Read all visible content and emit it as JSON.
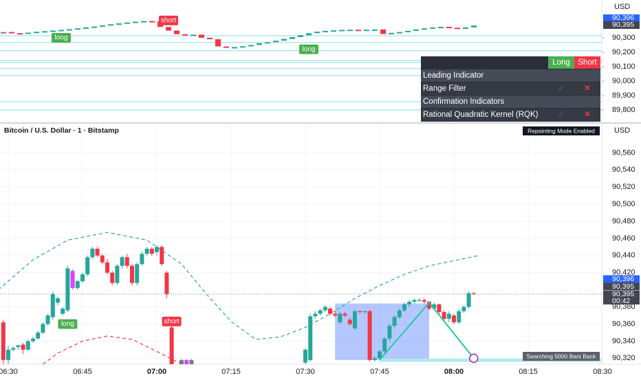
{
  "top_pane": {
    "ylim": [
      89714,
      90562
    ],
    "axis_unit": "USD",
    "yticks": [
      {
        "value": 90300,
        "label": "90,300"
      },
      {
        "value": 90200,
        "label": "90,200"
      },
      {
        "value": 90100,
        "label": "90,100"
      },
      {
        "value": 90000,
        "label": "90,000"
      },
      {
        "value": 89900,
        "label": "89,900"
      },
      {
        "value": 89800,
        "label": "89,800"
      }
    ],
    "price_tags": [
      {
        "value": 90396,
        "label": "90,396",
        "color": "#2962ff"
      },
      {
        "value": 90395,
        "label": "90,395",
        "color": "#434651"
      }
    ],
    "levels": [
      90314,
      90267,
      90210,
      90143,
      90129,
      90086,
      90038,
      89857,
      89800
    ],
    "closes": [
      90340,
      90332,
      90328,
      90336,
      90342,
      90346,
      90350,
      90355,
      90360,
      90366,
      90372,
      90378,
      90386,
      90394,
      90400,
      90406,
      90412,
      90416,
      90414,
      90375,
      90350,
      90325,
      90318,
      90322,
      90300,
      90290,
      90240,
      90232,
      90236,
      90242,
      90250,
      90262,
      90270,
      90280,
      90292,
      90305,
      90318,
      90332,
      90342,
      90348,
      90352,
      90355,
      90356,
      90354,
      90356,
      90358,
      90326,
      90334,
      90340,
      90348,
      90358,
      90366,
      90372,
      90376,
      90370,
      90362,
      90372,
      90385
    ],
    "signals": [
      {
        "text": "long",
        "index": 7,
        "value": 90300,
        "color": "#4caf50"
      },
      {
        "text": "short",
        "index": 20,
        "value": 90420,
        "color": "#f23645"
      },
      {
        "text": "long",
        "index": 37,
        "value": 90220,
        "color": "#4caf50"
      }
    ]
  },
  "table": {
    "header": [
      "Long",
      "Short"
    ],
    "rows": [
      {
        "label": "Leading Indicator",
        "section": true
      },
      {
        "label": "Range Filter",
        "long": "✓",
        "short": "✕"
      },
      {
        "label": "Confirmation Indicators",
        "section": true
      },
      {
        "label": "Rational Quadratic Kernel (RQK)",
        "long": "✓",
        "short": "✕"
      }
    ]
  },
  "bottom_pane": {
    "symbol": "Bitcoin / U.S. Dollar · 1 · Bitstamp",
    "badge": "Repainting Mode Enabled",
    "status": "Searching 5000 Bars Back",
    "axis_unit": "USD",
    "ylim": [
      90313,
      90594
    ],
    "yticks": [
      {
        "value": 90560,
        "label": "90,560"
      },
      {
        "value": 90540,
        "label": "90,540"
      },
      {
        "value": 90520,
        "label": "90,520"
      },
      {
        "value": 90500,
        "label": "90,500"
      },
      {
        "value": 90480,
        "label": "90,480"
      },
      {
        "value": 90460,
        "label": "90,460"
      },
      {
        "value": 90440,
        "label": "90,440"
      },
      {
        "value": 90420,
        "label": "90,420"
      },
      {
        "value": 90380,
        "label": "90,380"
      },
      {
        "value": 90360,
        "label": "90,360"
      },
      {
        "value": 90340,
        "label": "90,340"
      },
      {
        "value": 90320,
        "label": "90,320"
      }
    ],
    "xticks": [
      "06:30",
      "06:45",
      "07:00",
      "07:15",
      "07:30",
      "07:45",
      "08:00",
      "08:15",
      "08:30"
    ],
    "price_tags": [
      {
        "value": 90396,
        "label": "90,396",
        "color": "#2962ff"
      },
      {
        "value": 90395,
        "label": "90,395",
        "color": "#434651"
      }
    ],
    "last_price": {
      "value": 90395,
      "label": "90,395",
      "countdown": "00:42"
    },
    "candles": [
      {
        "t": "06:29",
        "o": 90362,
        "h": 90365,
        "l": 90310,
        "c": 90318
      },
      {
        "t": "06:30",
        "o": 90318,
        "h": 90335,
        "l": 90312,
        "c": 90330
      },
      {
        "t": "06:31",
        "o": 90330,
        "h": 90334,
        "l": 90328,
        "c": 90332
      },
      {
        "t": "06:32",
        "o": 90333,
        "h": 90336,
        "l": 90330,
        "c": 90335
      },
      {
        "t": "06:33",
        "o": 90336,
        "h": 90338,
        "l": 90325,
        "c": 90330
      },
      {
        "t": "06:34",
        "o": 90330,
        "h": 90342,
        "l": 90329,
        "c": 90340
      },
      {
        "t": "06:35",
        "o": 90340,
        "h": 90345,
        "l": 90338,
        "c": 90343
      },
      {
        "t": "06:36",
        "o": 90343,
        "h": 90352,
        "l": 90342,
        "c": 90350
      },
      {
        "t": "06:37",
        "o": 90350,
        "h": 90362,
        "l": 90348,
        "c": 90360
      },
      {
        "t": "06:38",
        "o": 90360,
        "h": 90372,
        "l": 90358,
        "c": 90370
      },
      {
        "t": "06:39",
        "o": 90368,
        "h": 90398,
        "l": 90365,
        "c": 90395
      },
      {
        "t": "06:40",
        "o": 90385,
        "h": 90392,
        "l": 90382,
        "c": 90390
      },
      {
        "t": "06:41",
        "o": 90372,
        "h": 90380,
        "l": 90370,
        "c": 90378
      },
      {
        "t": "06:42",
        "o": 90376,
        "h": 90428,
        "l": 90374,
        "c": 90425
      },
      {
        "t": "06:43",
        "o": 90422,
        "h": 90424,
        "l": 90400,
        "c": 90402,
        "color": "#e040fb"
      },
      {
        "t": "06:44",
        "o": 90402,
        "h": 90412,
        "l": 90400,
        "c": 90410
      },
      {
        "t": "06:45",
        "o": 90410,
        "h": 90420,
        "l": 90408,
        "c": 90418
      },
      {
        "t": "06:46",
        "o": 90418,
        "h": 90440,
        "l": 90416,
        "c": 90438
      },
      {
        "t": "06:47",
        "o": 90438,
        "h": 90450,
        "l": 90436,
        "c": 90448
      },
      {
        "t": "06:48",
        "o": 90448,
        "h": 90450,
        "l": 90438,
        "c": 90440
      },
      {
        "t": "06:49",
        "o": 90440,
        "h": 90442,
        "l": 90430,
        "c": 90432
      },
      {
        "t": "06:50",
        "o": 90432,
        "h": 90436,
        "l": 90418,
        "c": 90420
      },
      {
        "t": "06:51",
        "o": 90420,
        "h": 90422,
        "l": 90405,
        "c": 90408
      },
      {
        "t": "06:52",
        "o": 90408,
        "h": 90430,
        "l": 90406,
        "c": 90428
      },
      {
        "t": "06:53",
        "o": 90428,
        "h": 90440,
        "l": 90425,
        "c": 90438
      },
      {
        "t": "06:54",
        "o": 90438,
        "h": 90442,
        "l": 90425,
        "c": 90428
      },
      {
        "t": "06:55",
        "o": 90428,
        "h": 90430,
        "l": 90405,
        "c": 90408
      },
      {
        "t": "06:56",
        "o": 90408,
        "h": 90432,
        "l": 90405,
        "c": 90430
      },
      {
        "t": "06:57",
        "o": 90430,
        "h": 90445,
        "l": 90428,
        "c": 90442
      },
      {
        "t": "06:58",
        "o": 90442,
        "h": 90450,
        "l": 90440,
        "c": 90448
      },
      {
        "t": "06:59",
        "o": 90448,
        "h": 90450,
        "l": 90440,
        "c": 90442
      },
      {
        "t": "07:00",
        "o": 90444,
        "h": 90452,
        "l": 90440,
        "c": 90450
      },
      {
        "t": "07:01",
        "o": 90450,
        "h": 90452,
        "l": 90428,
        "c": 90430
      },
      {
        "t": "07:02",
        "o": 90420,
        "h": 90422,
        "l": 90390,
        "c": 90395
      },
      {
        "t": "07:03",
        "o": 90356,
        "h": 90358,
        "l": 90290,
        "c": 90300
      },
      {
        "t": "07:05",
        "o": 90318,
        "h": 90319,
        "l": 90300,
        "c": 90305,
        "color": "#787b86"
      },
      {
        "t": "07:06",
        "o": 90318,
        "h": 90319,
        "l": 90300,
        "c": 90302,
        "color": "#e040fb"
      },
      {
        "t": "07:07",
        "o": 90318,
        "h": 90319,
        "l": 90300,
        "c": 90303,
        "color": "#787b86"
      },
      {
        "t": "07:30",
        "o": 90315,
        "h": 90332,
        "l": 90312,
        "c": 90330
      },
      {
        "t": "07:31",
        "o": 90318,
        "h": 90372,
        "l": 90316,
        "c": 90369
      },
      {
        "t": "07:32",
        "o": 90369,
        "h": 90375,
        "l": 90366,
        "c": 90372
      },
      {
        "t": "07:33",
        "o": 90372,
        "h": 90378,
        "l": 90370,
        "c": 90376
      },
      {
        "t": "07:34",
        "o": 90376,
        "h": 90382,
        "l": 90374,
        "c": 90380
      },
      {
        "t": "07:35",
        "o": 90378,
        "h": 90380,
        "l": 90370,
        "c": 90372
      },
      {
        "t": "07:36",
        "o": 90372,
        "h": 90376,
        "l": 90368,
        "c": 90370
      },
      {
        "t": "07:37",
        "o": 90362,
        "h": 90374,
        "l": 90360,
        "c": 90372
      },
      {
        "t": "07:38",
        "o": 90372,
        "h": 90374,
        "l": 90368,
        "c": 90370
      },
      {
        "t": "07:39",
        "o": 90365,
        "h": 90368,
        "l": 90358,
        "c": 90360
      },
      {
        "t": "07:40",
        "o": 90355,
        "h": 90377,
        "l": 90353,
        "c": 90375
      },
      {
        "t": "07:41",
        "o": 90375,
        "h": 90376,
        "l": 90372,
        "c": 90374
      },
      {
        "t": "07:42",
        "o": 90374,
        "h": 90376,
        "l": 90372,
        "c": 90375
      },
      {
        "t": "07:43",
        "o": 90375,
        "h": 90377,
        "l": 90316,
        "c": 90318
      },
      {
        "t": "07:44",
        "o": 90318,
        "h": 90322,
        "l": 90316,
        "c": 90320
      },
      {
        "t": "07:45",
        "o": 90320,
        "h": 90330,
        "l": 90318,
        "c": 90328
      },
      {
        "t": "07:46",
        "o": 90328,
        "h": 90345,
        "l": 90326,
        "c": 90343
      },
      {
        "t": "07:47",
        "o": 90343,
        "h": 90360,
        "l": 90340,
        "c": 90358
      },
      {
        "t": "07:48",
        "o": 90358,
        "h": 90370,
        "l": 90355,
        "c": 90368
      },
      {
        "t": "07:49",
        "o": 90368,
        "h": 90378,
        "l": 90366,
        "c": 90376
      },
      {
        "t": "07:50",
        "o": 90376,
        "h": 90385,
        "l": 90374,
        "c": 90383
      },
      {
        "t": "07:51",
        "o": 90383,
        "h": 90388,
        "l": 90380,
        "c": 90386
      },
      {
        "t": "07:52",
        "o": 90386,
        "h": 90390,
        "l": 90384,
        "c": 90388
      },
      {
        "t": "07:53",
        "o": 90387,
        "h": 90390,
        "l": 90386,
        "c": 90388
      },
      {
        "t": "07:54",
        "o": 90388,
        "h": 90390,
        "l": 90384,
        "c": 90386
      },
      {
        "t": "07:55",
        "o": 90386,
        "h": 90387,
        "l": 90376,
        "c": 90378
      },
      {
        "t": "07:56",
        "o": 90378,
        "h": 90385,
        "l": 90376,
        "c": 90383
      },
      {
        "t": "07:57",
        "o": 90383,
        "h": 90384,
        "l": 90372,
        "c": 90374
      },
      {
        "t": "07:58",
        "o": 90374,
        "h": 90376,
        "l": 90364,
        "c": 90366
      },
      {
        "t": "07:59",
        "o": 90366,
        "h": 90375,
        "l": 90362,
        "c": 90372
      },
      {
        "t": "08:00",
        "o": 90370,
        "h": 90372,
        "l": 90360,
        "c": 90362
      },
      {
        "t": "08:01",
        "o": 90362,
        "h": 90378,
        "l": 90360,
        "c": 90375
      },
      {
        "t": "08:02",
        "o": 90375,
        "h": 90382,
        "l": 90373,
        "c": 90380
      },
      {
        "t": "08:03",
        "o": 90380,
        "h": 90398,
        "l": 90378,
        "c": 90396
      },
      {
        "t": "08:04",
        "o": 90396,
        "h": 90397,
        "l": 90394,
        "c": 90395
      }
    ],
    "kernel_upper": {
      "color": "#26a69a",
      "t": [
        "06:28",
        "06:35",
        "06:42",
        "06:50",
        "06:58",
        "07:05",
        "07:10",
        "07:15",
        "07:20",
        "07:25",
        "07:30",
        "07:35",
        "07:40",
        "07:45",
        "07:50",
        "07:55",
        "08:00",
        "08:05"
      ],
      "values": [
        90400,
        90435,
        90458,
        90467,
        90458,
        90430,
        90395,
        90363,
        90342,
        90345,
        90356,
        90372,
        90390,
        90405,
        90418,
        90428,
        90434,
        90440
      ]
    },
    "kernel_lower": {
      "color": "#f23645",
      "t": [
        "06:37",
        "06:40",
        "06:45",
        "06:50",
        "06:55",
        "07:00",
        "07:05"
      ],
      "values": [
        90313,
        90326,
        90340,
        90346,
        90342,
        90328,
        90313
      ]
    },
    "box": {
      "t": [
        "07:36",
        "07:55"
      ],
      "values": [
        90318,
        90384
      ]
    },
    "pattern": {
      "t": [
        "07:45",
        "07:55",
        "08:04"
      ],
      "values": [
        90318,
        90385,
        90320
      ]
    },
    "signals": [
      {
        "text": "long",
        "t": "06:42",
        "value": 90360,
        "color": "#4caf50"
      },
      {
        "text": "short",
        "t": "07:03",
        "value": 90363,
        "color": "#f23645"
      }
    ]
  }
}
